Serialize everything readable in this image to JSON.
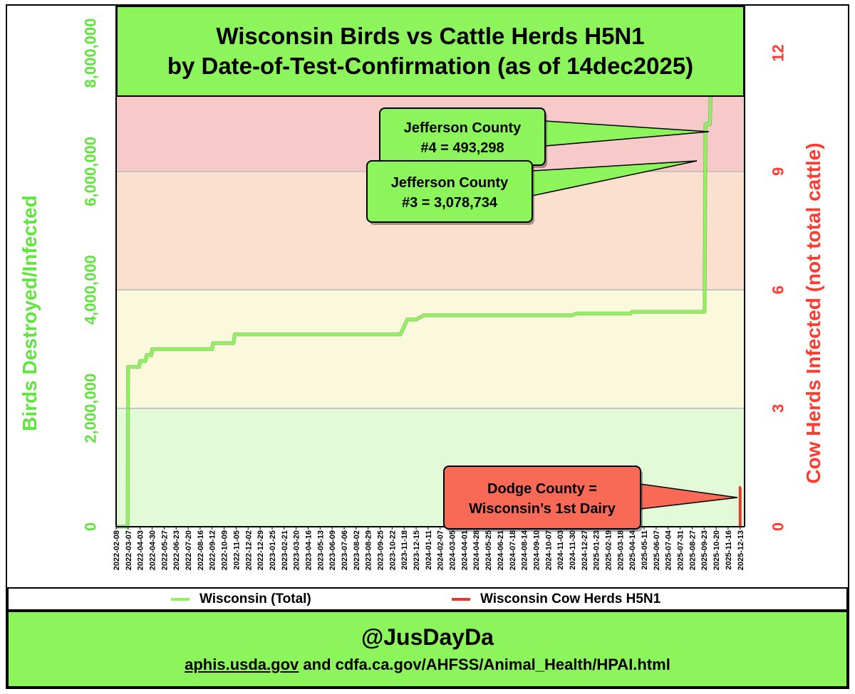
{
  "chart_data": {
    "type": "line",
    "title": "Wisconsin Birds vs Cattle Herds H5N1",
    "subtitle": "by Date-of-Test-Confirmation (as of 14dec2025)",
    "ylabel": "Birds Destroyed/Infected",
    "y2label": "Cow Herds Infected (not total cattle)",
    "ylim": [
      0,
      8800000
    ],
    "y2lim": [
      0,
      13.2
    ],
    "yticks": [
      0,
      2000000,
      4000000,
      6000000,
      8000000
    ],
    "ytick_labels": [
      "0",
      "2,000,000",
      "4,000,000",
      "6,000,000",
      "8,000,000"
    ],
    "y2ticks": [
      0,
      3,
      6,
      9,
      12
    ],
    "y2tick_labels": [
      "0",
      "3",
      "6",
      "9",
      "12"
    ],
    "xlim": [
      "2022-02-08",
      "2025-12-23"
    ],
    "xtick_labels": [
      "2022-02-08",
      "2022-03-07",
      "2022-04-03",
      "2022-04-30",
      "2022-05-27",
      "2022-06-23",
      "2022-07-20",
      "2022-08-16",
      "2022-09-12",
      "2022-10-09",
      "2022-11-05",
      "2022-12-02",
      "2022-12-29",
      "2023-01-25",
      "2023-02-21",
      "2023-03-20",
      "2023-04-16",
      "2023-05-13",
      "2023-06-09",
      "2023-07-06",
      "2023-08-02",
      "2023-08-29",
      "2023-09-25",
      "2023-10-22",
      "2023-11-18",
      "2023-12-15",
      "2024-01-11",
      "2024-02-07",
      "2024-03-05",
      "2024-04-01",
      "2024-04-28",
      "2024-05-25",
      "2024-06-21",
      "2024-07-18",
      "2024-08-14",
      "2024-09-10",
      "2024-10-07",
      "2024-11-03",
      "2024-11-30",
      "2024-12-27",
      "2025-01-23",
      "2025-02-19",
      "2025-03-18",
      "2025-04-14",
      "2025-05-11",
      "2025-06-07",
      "2025-07-04",
      "2025-07-31",
      "2025-08-27",
      "2025-09-23",
      "2025-10-20",
      "2025-11-16",
      "2025-12-13"
    ],
    "bands": [
      {
        "from": 0,
        "to": 2000000,
        "color": "#e2fad7"
      },
      {
        "from": 2000000,
        "to": 4000000,
        "color": "#fbf9dc"
      },
      {
        "from": 4000000,
        "to": 6000000,
        "color": "#fbe0cf"
      },
      {
        "from": 6000000,
        "to": 8000000,
        "color": "#f7caca"
      },
      {
        "from": 8000000,
        "to": 8800000,
        "color": "#ffffff"
      }
    ],
    "series": [
      {
        "name": "Wisconsin (Total)",
        "axis": "left",
        "color": "#8cf55c",
        "points": [
          [
            "2022-02-08",
            0
          ],
          [
            "2022-03-06",
            0
          ],
          [
            "2022-03-07",
            2700000
          ],
          [
            "2022-04-01",
            2700000
          ],
          [
            "2022-04-03",
            2800000
          ],
          [
            "2022-04-15",
            2800000
          ],
          [
            "2022-04-18",
            2900000
          ],
          [
            "2022-04-28",
            2900000
          ],
          [
            "2022-04-30",
            3000000
          ],
          [
            "2022-09-12",
            3000000
          ],
          [
            "2022-09-14",
            3100000
          ],
          [
            "2022-10-30",
            3100000
          ],
          [
            "2022-11-02",
            3250000
          ],
          [
            "2023-11-10",
            3250000
          ],
          [
            "2023-11-25",
            3500000
          ],
          [
            "2023-12-15",
            3500000
          ],
          [
            "2024-01-01",
            3570000
          ],
          [
            "2024-11-30",
            3570000
          ],
          [
            "2024-12-10",
            3600000
          ],
          [
            "2025-04-10",
            3600000
          ],
          [
            "2025-04-14",
            3630000
          ],
          [
            "2025-09-24",
            3630000
          ],
          [
            "2025-09-26",
            6800000
          ],
          [
            "2025-10-06",
            6800000
          ],
          [
            "2025-10-08",
            7300000
          ],
          [
            "2025-12-23",
            7300000
          ]
        ]
      },
      {
        "name": "Wisconsin Cow Herds H5N1",
        "axis": "right",
        "color": "#e83a2a",
        "points": [
          [
            "2025-12-13",
            0
          ],
          [
            "2025-12-13",
            1
          ],
          [
            "2025-12-14",
            1
          ]
        ]
      }
    ],
    "annotations": [
      {
        "line1": "Jefferson County",
        "line2": "#4 = 493,298",
        "color": "#8cf55c"
      },
      {
        "line1": "Jefferson County",
        "line2": "#3 = 3,078,734",
        "color": "#8cf55c"
      },
      {
        "line1": "Dodge County =",
        "line2": "Wisconsin’s 1st Dairy",
        "color": "#f86a55"
      }
    ],
    "legend": "bottom"
  },
  "footer": {
    "handle": "@JusDayDa",
    "source_link": "aphis.usda.gov",
    "source_rest": " and cdfa.ca.gov/AHFSS/Animal_Health/HPAI.html"
  },
  "colors": {
    "bird_line": "#8cf55c",
    "cow_line": "#e83a2a",
    "left_axis": "#5ee63a",
    "right_axis": "#ff3b2f",
    "panel": "#8cf55c"
  }
}
